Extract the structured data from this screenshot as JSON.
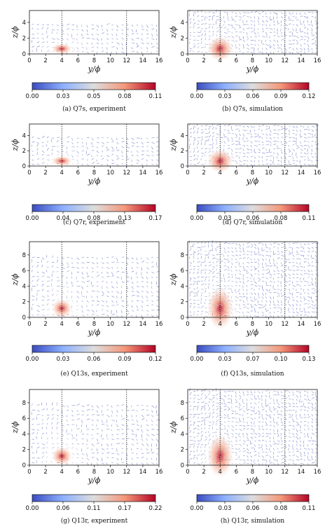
{
  "figure": {
    "panels": [
      {
        "id": "a",
        "caption": "(a) Q7s, experiment",
        "ylim": [
          0,
          5.5
        ],
        "yticks": [
          "0",
          "2",
          "4"
        ],
        "yticks_v": [
          0,
          2,
          4
        ],
        "cbar": [
          "0.00",
          "0.03",
          "0.05",
          "0.08",
          "0.11"
        ],
        "vmax": 0.11,
        "type": "experiment",
        "dashed_y": [
          4,
          12
        ]
      },
      {
        "id": "b",
        "caption": "(b) Q7s, simulation",
        "ylim": [
          0,
          5.5
        ],
        "yticks": [
          "0",
          "2",
          "4"
        ],
        "yticks_v": [
          0,
          2,
          4
        ],
        "cbar": [
          "0.00",
          "0.03",
          "0.06",
          "0.09",
          "0.12"
        ],
        "vmax": 0.12,
        "type": "simulation",
        "dashed_y": [
          4,
          12
        ]
      },
      {
        "id": "c",
        "caption": "(c) Q7r, experiment",
        "ylim": [
          0,
          5.5
        ],
        "yticks": [
          "0",
          "2",
          "4"
        ],
        "yticks_v": [
          0,
          2,
          4
        ],
        "cbar": [
          "0.00",
          "0.04",
          "0.08",
          "0.13",
          "0.17"
        ],
        "vmax": 0.17,
        "type": "experiment",
        "dashed_y": [
          4,
          12
        ]
      },
      {
        "id": "d",
        "caption": "(d) Q7r, simulation",
        "ylim": [
          0,
          5.5
        ],
        "yticks": [
          "0",
          "2",
          "4"
        ],
        "yticks_v": [
          0,
          2,
          4
        ],
        "cbar": [
          "0.00",
          "0.03",
          "0.06",
          "0.08",
          "0.11"
        ],
        "vmax": 0.11,
        "type": "simulation",
        "dashed_y": [
          4,
          12
        ]
      },
      {
        "id": "e",
        "caption": "(e) Q13s, experiment",
        "ylim": [
          0,
          9.7
        ],
        "yticks": [
          "0",
          "2",
          "4",
          "6",
          "8"
        ],
        "yticks_v": [
          0,
          2,
          4,
          6,
          8
        ],
        "cbar": [
          "0.00",
          "0.03",
          "0.06",
          "0.09",
          "0.12"
        ],
        "vmax": 0.12,
        "type": "experiment",
        "dashed_y": [
          4,
          12
        ]
      },
      {
        "id": "f",
        "caption": "(f) Q13s, simulation",
        "ylim": [
          0,
          9.7
        ],
        "yticks": [
          "0",
          "2",
          "4",
          "6",
          "8"
        ],
        "yticks_v": [
          0,
          2,
          4,
          6,
          8
        ],
        "cbar": [
          "0.00",
          "0.03",
          "0.07",
          "0.10",
          "0.13"
        ],
        "vmax": 0.13,
        "type": "simulation",
        "dashed_y": [
          4,
          12
        ]
      },
      {
        "id": "g",
        "caption": "(g) Q13r, experiment",
        "ylim": [
          0,
          9.7
        ],
        "yticks": [
          "0",
          "2",
          "4",
          "6",
          "8"
        ],
        "yticks_v": [
          0,
          2,
          4,
          6,
          8
        ],
        "cbar": [
          "0.00",
          "0.06",
          "0.11",
          "0.17",
          "0.22"
        ],
        "vmax": 0.22,
        "type": "experiment",
        "dashed_y": [
          4,
          12
        ]
      },
      {
        "id": "h",
        "caption": "(h) Q13r, simulation",
        "ylim": [
          0,
          9.7
        ],
        "yticks": [
          "0",
          "2",
          "4",
          "6",
          "8"
        ],
        "yticks_v": [
          0,
          2,
          4,
          6,
          8
        ],
        "cbar": [
          "0.00",
          "0.03",
          "0.06",
          "0.08",
          "0.11"
        ],
        "vmax": 0.11,
        "type": "simulation",
        "dashed_y": [
          4,
          12
        ]
      }
    ],
    "xlabel": "y/ϕ",
    "ylabel": "z/ϕ",
    "xticks": [
      "0",
      "2",
      "4",
      "6",
      "8",
      "10",
      "12",
      "14",
      "16"
    ],
    "xlim": [
      0,
      16
    ],
    "colormap": {
      "low": "#3b4cc0",
      "mid": "#dddddd",
      "high": "#b40426"
    }
  }
}
